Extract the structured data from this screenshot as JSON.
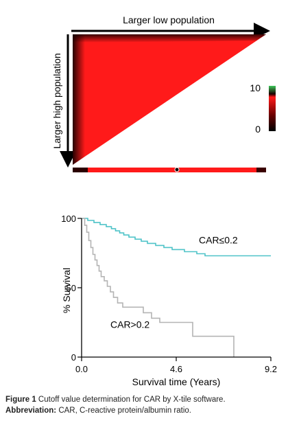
{
  "xtile": {
    "top_label": "Larger low population",
    "side_label": "Larger high population",
    "colorbar_max": "10",
    "colorbar_min": "0",
    "colors": {
      "red": "#ff1a1a",
      "dark": "#1a0000",
      "green": "#3cc85a",
      "black": "#000000"
    }
  },
  "chart_data": {
    "type": "line",
    "xlabel": "Survival time (Years)",
    "ylabel": "% Survival",
    "x_ticks": [
      "0.0",
      "4.6",
      "9.2"
    ],
    "y_ticks": [
      "0",
      "50",
      "100"
    ],
    "xlim": [
      0,
      9.2
    ],
    "ylim": [
      0,
      100
    ],
    "series": [
      {
        "name": "CAR≤0.2",
        "color": "#4ec3c8",
        "points": [
          [
            0,
            100
          ],
          [
            0.3,
            100
          ],
          [
            0.3,
            98.5
          ],
          [
            0.6,
            98.5
          ],
          [
            0.6,
            97
          ],
          [
            0.9,
            97
          ],
          [
            0.9,
            95.5
          ],
          [
            1.2,
            95.5
          ],
          [
            1.2,
            94
          ],
          [
            1.45,
            94
          ],
          [
            1.45,
            92.5
          ],
          [
            1.65,
            92.5
          ],
          [
            1.65,
            91
          ],
          [
            1.85,
            91
          ],
          [
            1.85,
            89.5
          ],
          [
            2.05,
            89.5
          ],
          [
            2.05,
            88
          ],
          [
            2.3,
            88
          ],
          [
            2.3,
            86.5
          ],
          [
            2.6,
            86.5
          ],
          [
            2.6,
            85
          ],
          [
            2.9,
            85
          ],
          [
            2.9,
            83.5
          ],
          [
            3.2,
            83.5
          ],
          [
            3.2,
            82
          ],
          [
            3.6,
            82
          ],
          [
            3.6,
            80.5
          ],
          [
            4.0,
            80.5
          ],
          [
            4.0,
            79
          ],
          [
            4.4,
            79
          ],
          [
            4.4,
            77.5
          ],
          [
            5.0,
            77.5
          ],
          [
            5.0,
            76
          ],
          [
            5.6,
            76
          ],
          [
            5.6,
            74.5
          ],
          [
            6.0,
            74.5
          ],
          [
            6.0,
            73
          ],
          [
            9.2,
            73
          ]
        ]
      },
      {
        "name": "CAR>0.2",
        "color": "#b4b4b4",
        "points": [
          [
            0,
            100
          ],
          [
            0.15,
            100
          ],
          [
            0.15,
            95
          ],
          [
            0.25,
            95
          ],
          [
            0.25,
            90
          ],
          [
            0.35,
            90
          ],
          [
            0.35,
            84
          ],
          [
            0.45,
            84
          ],
          [
            0.45,
            79
          ],
          [
            0.55,
            79
          ],
          [
            0.55,
            74
          ],
          [
            0.65,
            74
          ],
          [
            0.65,
            70
          ],
          [
            0.75,
            70
          ],
          [
            0.75,
            66
          ],
          [
            0.85,
            66
          ],
          [
            0.85,
            62
          ],
          [
            0.95,
            62
          ],
          [
            0.95,
            58
          ],
          [
            1.1,
            58
          ],
          [
            1.1,
            55
          ],
          [
            1.25,
            55
          ],
          [
            1.25,
            51
          ],
          [
            1.4,
            51
          ],
          [
            1.4,
            47
          ],
          [
            1.55,
            47
          ],
          [
            1.55,
            43
          ],
          [
            1.75,
            43
          ],
          [
            1.75,
            39
          ],
          [
            2.0,
            39
          ],
          [
            2.0,
            36
          ],
          [
            3.0,
            36
          ],
          [
            3.0,
            32
          ],
          [
            3.4,
            32
          ],
          [
            3.4,
            28
          ],
          [
            3.8,
            28
          ],
          [
            3.8,
            25
          ],
          [
            5.4,
            25
          ],
          [
            5.4,
            15
          ],
          [
            7.4,
            15
          ],
          [
            7.4,
            0
          ]
        ]
      }
    ],
    "annotations": [
      {
        "text": "CAR≤0.2",
        "x": 5.7,
        "y": 82
      },
      {
        "text": "CAR>0.2",
        "x": 1.4,
        "y": 21
      }
    ],
    "grid": false,
    "legend": "none"
  },
  "caption": {
    "line1_bold": "Figure 1",
    "line1_text": " Cutoff value determination for CAR by X-tile software.",
    "line2_bold": "Abbreviation:",
    "line2_text": " CAR, C-reactive protein/albumin ratio."
  }
}
